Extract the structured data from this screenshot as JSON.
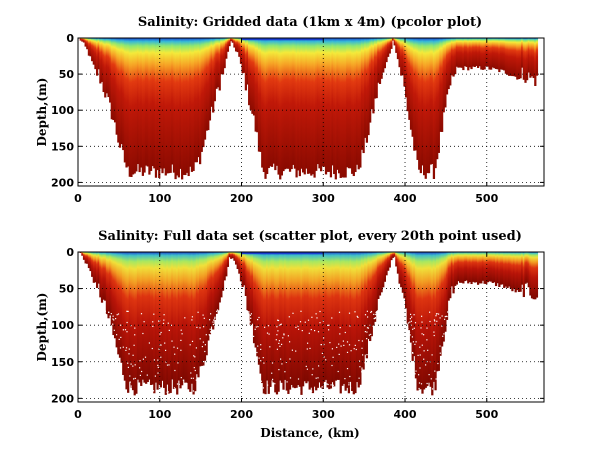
{
  "chart_data": [
    {
      "type": "heatmap",
      "title": "Salinity: Gridded data (1km x 4m) (pcolor plot)",
      "xlabel": "",
      "ylabel": "Depth,(m)",
      "xlim": [
        0,
        570
      ],
      "ylim": [
        0,
        205
      ],
      "y_reversed": true,
      "xticks": [
        "0",
        "100",
        "200",
        "300",
        "400",
        "500"
      ],
      "yticks": [
        "0",
        "50",
        "100",
        "150",
        "200"
      ],
      "grid": true,
      "colormap": "jet",
      "colors": {
        "low": "#1040c8",
        "mid": "#3ec8c8",
        "high": "#f4e63a",
        "max": "#8a0a00"
      },
      "bottom_depth_profile": {
        "distance_km": [
          0,
          10,
          20,
          30,
          40,
          50,
          60,
          80,
          100,
          120,
          140,
          150,
          160,
          175,
          185,
          195,
          205,
          215,
          225,
          235,
          250,
          270,
          290,
          310,
          325,
          340,
          350,
          360,
          370,
          385,
          395,
          405,
          415,
          425,
          435,
          445,
          455,
          462,
          470,
          480,
          500,
          520,
          540,
          560
        ],
        "depth_m": [
          2,
          20,
          48,
          80,
          115,
          160,
          196,
          196,
          196,
          196,
          196,
          170,
          125,
          60,
          8,
          25,
          80,
          130,
          195,
          196,
          196,
          196,
          196,
          196,
          196,
          196,
          160,
          110,
          60,
          5,
          60,
          130,
          196,
          196,
          196,
          130,
          70,
          45,
          45,
          45,
          45,
          50,
          60,
          70
        ]
      }
    },
    {
      "type": "scatter",
      "title": "Salinity: Full data set (scatter plot, every 20th point used)",
      "xlabel": "Distance, (km)",
      "ylabel": "Depth,(m)",
      "xlim": [
        0,
        570
      ],
      "ylim": [
        0,
        205
      ],
      "y_reversed": true,
      "xticks": [
        "0",
        "100",
        "200",
        "300",
        "400",
        "500"
      ],
      "yticks": [
        "0",
        "50",
        "100",
        "150",
        "200"
      ],
      "grid": true,
      "colormap": "jet",
      "colors": {
        "low": "#1040c8",
        "mid": "#3ec8c8",
        "high": "#f4e63a",
        "max": "#8a0a00"
      },
      "bottom_depth_profile": {
        "distance_km": [
          0,
          10,
          20,
          30,
          40,
          50,
          60,
          80,
          100,
          120,
          140,
          150,
          160,
          175,
          185,
          195,
          205,
          215,
          225,
          235,
          250,
          270,
          290,
          310,
          325,
          340,
          350,
          360,
          370,
          385,
          395,
          405,
          415,
          425,
          435,
          445,
          455,
          462,
          470,
          480,
          500,
          520,
          540,
          560
        ],
        "depth_m": [
          2,
          20,
          48,
          80,
          115,
          160,
          196,
          196,
          196,
          196,
          196,
          170,
          125,
          60,
          8,
          25,
          80,
          130,
          195,
          196,
          196,
          196,
          196,
          196,
          196,
          196,
          160,
          110,
          60,
          5,
          60,
          130,
          196,
          196,
          196,
          130,
          70,
          45,
          45,
          45,
          45,
          50,
          60,
          70
        ]
      }
    }
  ]
}
